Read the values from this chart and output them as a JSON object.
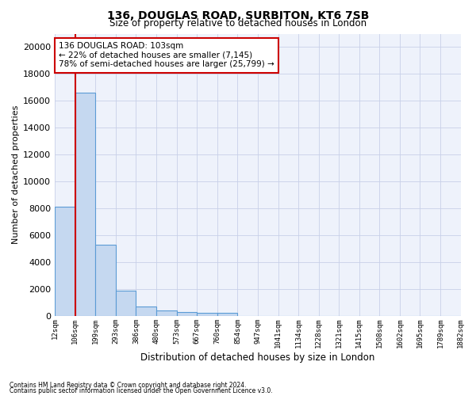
{
  "title_line1": "136, DOUGLAS ROAD, SURBITON, KT6 7SB",
  "title_line2": "Size of property relative to detached houses in London",
  "xlabel": "Distribution of detached houses by size in London",
  "ylabel": "Number of detached properties",
  "bar_color": "#c5d8f0",
  "bar_edge_color": "#5b9bd5",
  "background_color": "#eef2fb",
  "grid_color": "#c8d0e8",
  "annotation_line1": "136 DOUGLAS ROAD: 103sqm",
  "annotation_line2": "← 22% of detached houses are smaller (7,145)",
  "annotation_line3": "78% of semi-detached houses are larger (25,799) →",
  "annotation_box_color": "#cc0000",
  "vline_color": "#cc0000",
  "categories": [
    "12sqm",
    "106sqm",
    "199sqm",
    "293sqm",
    "386sqm",
    "480sqm",
    "573sqm",
    "667sqm",
    "760sqm",
    "854sqm",
    "947sqm",
    "1041sqm",
    "1134sqm",
    "1228sqm",
    "1321sqm",
    "1415sqm",
    "1508sqm",
    "1602sqm",
    "1695sqm",
    "1789sqm",
    "1882sqm"
  ],
  "bin_edges": [
    12,
    106,
    199,
    293,
    386,
    480,
    573,
    667,
    760,
    854,
    947,
    1041,
    1134,
    1228,
    1321,
    1415,
    1508,
    1602,
    1695,
    1789,
    1882
  ],
  "values": [
    8100,
    16600,
    5300,
    1850,
    700,
    370,
    280,
    220,
    190,
    0,
    0,
    0,
    0,
    0,
    0,
    0,
    0,
    0,
    0,
    0
  ],
  "ylim": [
    0,
    21000
  ],
  "yticks": [
    0,
    2000,
    4000,
    6000,
    8000,
    10000,
    12000,
    14000,
    16000,
    18000,
    20000
  ],
  "footer_line1": "Contains HM Land Registry data © Crown copyright and database right 2024.",
  "footer_line2": "Contains public sector information licensed under the Open Government Licence v3.0.",
  "vline_x": 106
}
